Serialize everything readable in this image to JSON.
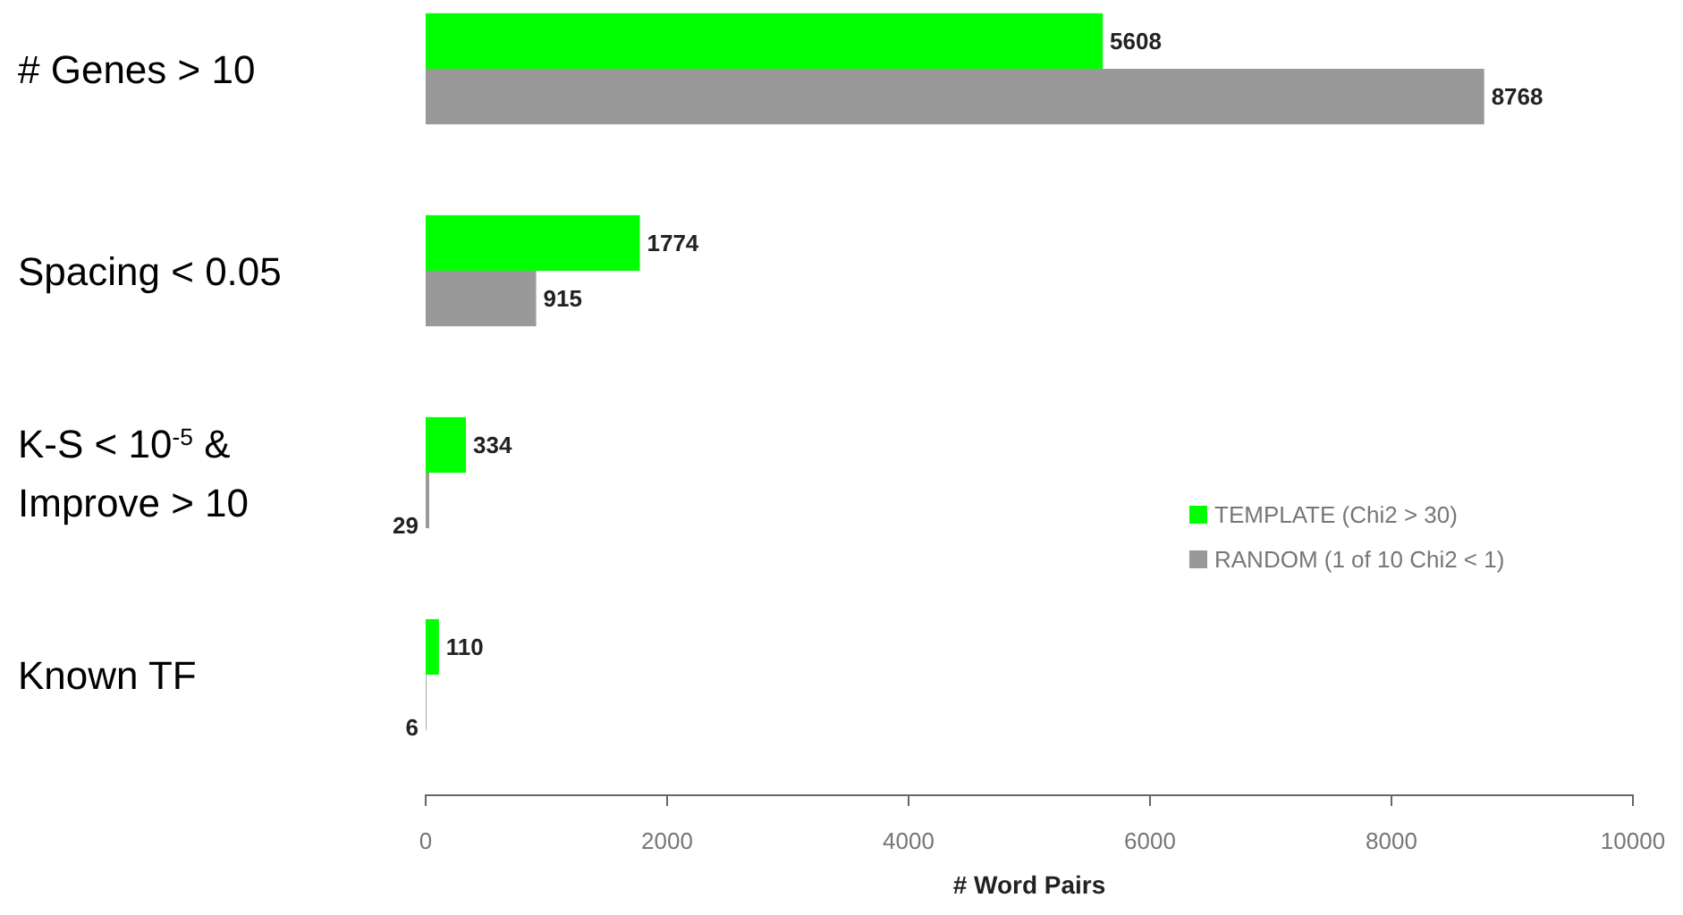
{
  "chart_data": {
    "type": "bar",
    "orientation": "horizontal",
    "xlabel": "# Word Pairs",
    "categories": [
      "# Genes > 10",
      "Spacing < 0.05",
      "K-S < 10$^{-5}$ &\nImprove > 10",
      "Known TF"
    ],
    "series": [
      {
        "name": "TEMPLATE  (Chi2 > 30)",
        "color": "#00ff00",
        "values": [
          5608,
          1774,
          334,
          110
        ]
      },
      {
        "name": "RANDOM  (1 of 10 Chi2 < 1)",
        "color": "#999999",
        "values": [
          8768,
          915,
          29,
          6
        ]
      }
    ],
    "xlim": [
      0,
      10000
    ],
    "xticks": [
      0,
      2000,
      4000,
      6000,
      8000,
      10000
    ],
    "data_labels": true,
    "grid": false,
    "legend": "bottom right"
  }
}
